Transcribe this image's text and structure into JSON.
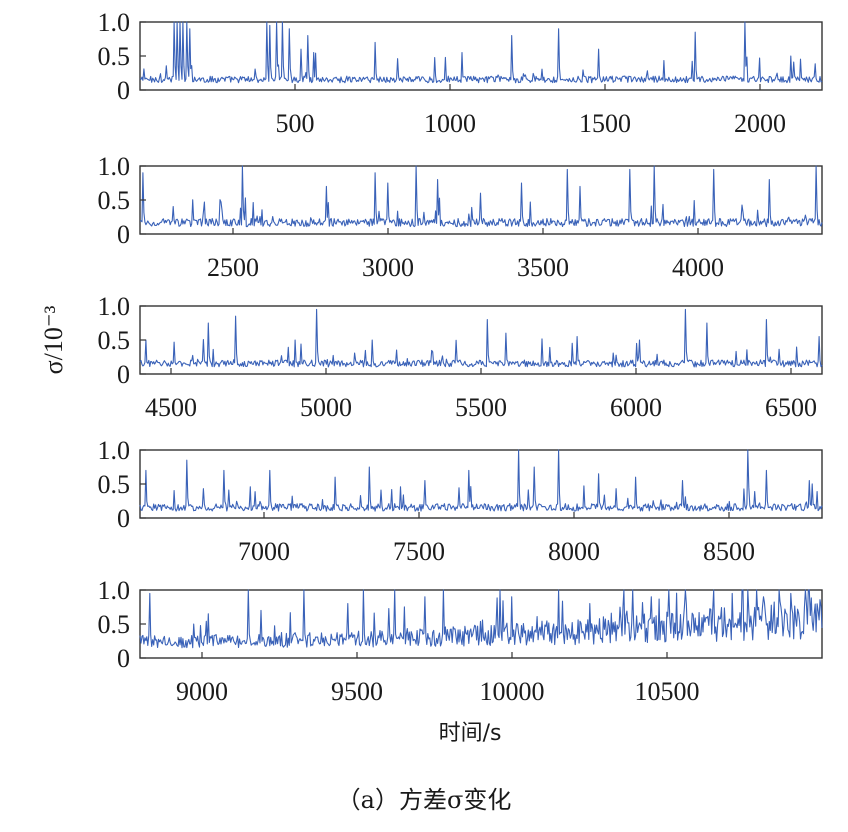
{
  "figure": {
    "ylabel": "σ/10⁻³",
    "xlabel": "时间/s",
    "caption": "（a）方差σ变化"
  },
  "colors": {
    "series": "#3a62b8",
    "axes": "#333333"
  },
  "chart_data": [
    {
      "type": "line",
      "series_name": "",
      "xlim": [
        0,
        2200
      ],
      "ylim": [
        0,
        1.0
      ],
      "xticks": [
        500,
        1000,
        1500,
        2000
      ],
      "yticks": [
        0,
        0.5,
        1.0
      ],
      "ytick_labels": [
        "0",
        "0.5",
        "1.0"
      ],
      "baseline": 0.14,
      "noise": 0.1,
      "spikes": [
        [
          110,
          1.0
        ],
        [
          120,
          1.0
        ],
        [
          130,
          1.0
        ],
        [
          140,
          1.0
        ],
        [
          150,
          1.0
        ],
        [
          160,
          0.9
        ],
        [
          410,
          1.0
        ],
        [
          420,
          0.95
        ],
        [
          440,
          1.0
        ],
        [
          460,
          1.0
        ],
        [
          480,
          0.9
        ],
        [
          520,
          0.6
        ],
        [
          540,
          0.8
        ],
        [
          560,
          0.55
        ],
        [
          760,
          0.7
        ],
        [
          1040,
          0.55
        ],
        [
          1200,
          0.8
        ],
        [
          1350,
          0.9
        ],
        [
          1480,
          0.6
        ],
        [
          1790,
          0.85
        ],
        [
          1950,
          1.0
        ],
        [
          2100,
          0.5
        ]
      ]
    },
    {
      "type": "line",
      "series_name": "",
      "xlim": [
        2200,
        4400
      ],
      "ylim": [
        0,
        1.0
      ],
      "xticks": [
        2500,
        3000,
        3500,
        4000
      ],
      "yticks": [
        0,
        0.5,
        1.0
      ],
      "ytick_labels": [
        "0",
        "0.5",
        "1.0"
      ],
      "baseline": 0.15,
      "noise": 0.12,
      "spikes": [
        [
          2210,
          0.9
        ],
        [
          2530,
          1.0
        ],
        [
          2800,
          0.7
        ],
        [
          2960,
          0.9
        ],
        [
          3000,
          0.75
        ],
        [
          3090,
          1.0
        ],
        [
          3160,
          0.8
        ],
        [
          3300,
          0.6
        ],
        [
          3430,
          0.75
        ],
        [
          3580,
          0.95
        ],
        [
          3620,
          0.7
        ],
        [
          3780,
          0.95
        ],
        [
          3860,
          1.0
        ],
        [
          4050,
          0.95
        ],
        [
          4230,
          0.8
        ],
        [
          4380,
          1.0
        ]
      ]
    },
    {
      "type": "line",
      "series_name": "",
      "xlim": [
        4400,
        6600
      ],
      "ylim": [
        0,
        1.0
      ],
      "xticks": [
        4500,
        5000,
        5500,
        6000,
        6500
      ],
      "yticks": [
        0,
        0.5,
        1.0
      ],
      "ytick_labels": [
        "0",
        "0.5",
        "1.0"
      ],
      "baseline": 0.14,
      "noise": 0.1,
      "spikes": [
        [
          4420,
          0.5
        ],
        [
          4620,
          0.75
        ],
        [
          4710,
          0.85
        ],
        [
          4900,
          0.5
        ],
        [
          4970,
          0.95
        ],
        [
          5150,
          0.5
        ],
        [
          5520,
          0.8
        ],
        [
          5580,
          0.6
        ],
        [
          5810,
          0.55
        ],
        [
          6010,
          0.5
        ],
        [
          6160,
          0.95
        ],
        [
          6230,
          0.75
        ],
        [
          6420,
          0.8
        ],
        [
          6590,
          0.55
        ]
      ]
    },
    {
      "type": "line",
      "series_name": "",
      "xlim": [
        6600,
        8800
      ],
      "ylim": [
        0,
        1.0
      ],
      "xticks": [
        7000,
        7500,
        8000,
        8500
      ],
      "yticks": [
        0,
        0.5,
        1.0
      ],
      "ytick_labels": [
        "0",
        "0.5",
        "1.0"
      ],
      "baseline": 0.14,
      "noise": 0.11,
      "spikes": [
        [
          6620,
          0.7
        ],
        [
          6750,
          0.85
        ],
        [
          6870,
          0.7
        ],
        [
          7020,
          0.7
        ],
        [
          7230,
          0.6
        ],
        [
          7340,
          0.75
        ],
        [
          7520,
          0.55
        ],
        [
          7660,
          0.7
        ],
        [
          7820,
          1.0
        ],
        [
          7870,
          0.75
        ],
        [
          7950,
          1.0
        ],
        [
          8080,
          0.65
        ],
        [
          8200,
          0.6
        ],
        [
          8350,
          0.55
        ],
        [
          8560,
          1.0
        ],
        [
          8620,
          0.7
        ],
        [
          8760,
          0.55
        ]
      ]
    },
    {
      "type": "line",
      "series_name": "",
      "xlim": [
        8800,
        11000
      ],
      "ylim": [
        0,
        1.0
      ],
      "xticks": [
        9000,
        9500,
        10000,
        10500
      ],
      "yticks": [
        0,
        0.5,
        1.0
      ],
      "ytick_labels": [
        "0",
        "0.5",
        "1.0"
      ],
      "tick_labels_text": [
        "9000",
        "9500",
        "10000",
        "10500"
      ],
      "baseline": 0.22,
      "noise": 0.2,
      "growth": 0.45,
      "spikes": [
        [
          8830,
          0.95
        ],
        [
          9020,
          0.65
        ],
        [
          9150,
          1.0
        ],
        [
          9190,
          0.7
        ],
        [
          9330,
          1.0
        ],
        [
          9470,
          0.8
        ],
        [
          9520,
          1.0
        ],
        [
          9620,
          1.0
        ],
        [
          9720,
          0.9
        ],
        [
          9780,
          1.0
        ],
        [
          9960,
          1.0
        ],
        [
          10000,
          0.9
        ],
        [
          10150,
          1.0
        ],
        [
          10250,
          0.8
        ],
        [
          10360,
          1.0
        ],
        [
          10390,
          1.0
        ],
        [
          10450,
          0.9
        ],
        [
          10560,
          1.0
        ],
        [
          10650,
          1.0
        ],
        [
          10710,
          0.95
        ],
        [
          10760,
          1.0
        ],
        [
          10810,
          0.9
        ],
        [
          10860,
          1.0
        ],
        [
          10900,
          0.95
        ],
        [
          10960,
          1.0
        ]
      ]
    }
  ]
}
